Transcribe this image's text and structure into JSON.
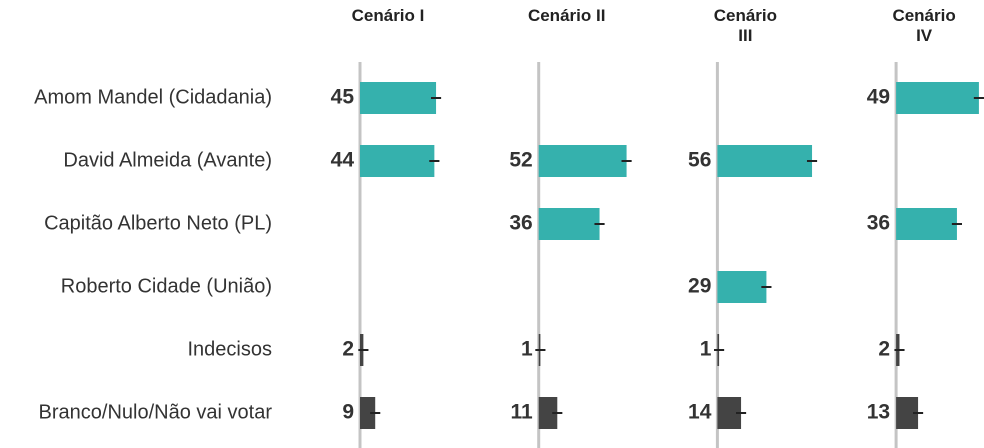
{
  "chart_data": {
    "type": "bar",
    "categories": [
      "Amom Mandel (Cidadania)",
      "David Almeida (Avante)",
      "Capitão Alberto Neto (PL)",
      "Roberto Cidade (União)",
      "Indecisos",
      "Branco/Nulo/Não vai votar"
    ],
    "colors": [
      "#35b1ad",
      "#35b1ad",
      "#35b1ad",
      "#35b1ad",
      "#444444",
      "#444444"
    ],
    "error": 3,
    "xlim": [
      0,
      100
    ],
    "series": [
      {
        "name": "Cenário I",
        "values": [
          45,
          44,
          null,
          null,
          2,
          9
        ]
      },
      {
        "name": "Cenário II",
        "values": [
          null,
          52,
          36,
          null,
          1,
          11
        ]
      },
      {
        "name": "Cenário III",
        "values": [
          null,
          56,
          null,
          29,
          1,
          14
        ]
      },
      {
        "name": "Cenário IV",
        "values": [
          49,
          null,
          36,
          null,
          2,
          13
        ]
      }
    ]
  }
}
